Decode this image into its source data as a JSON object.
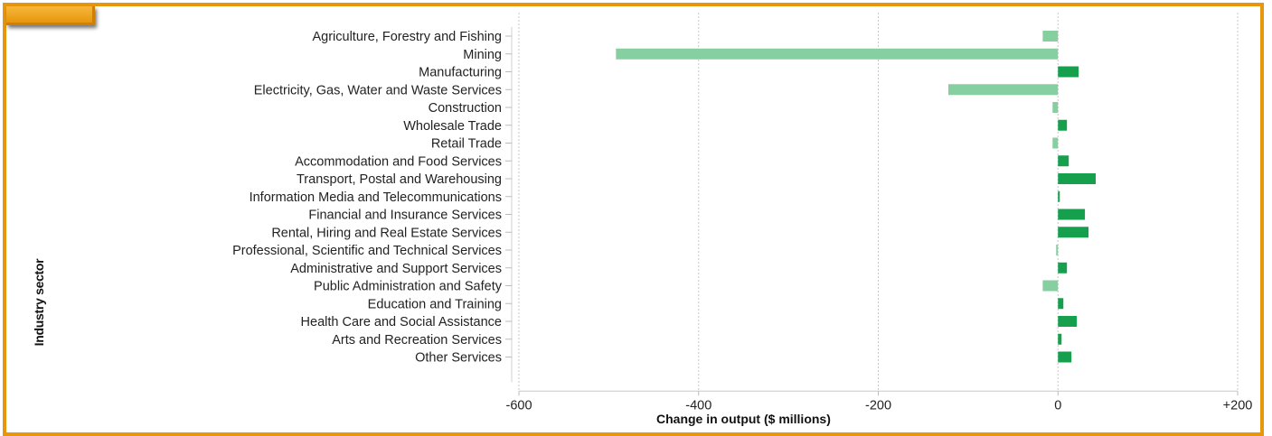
{
  "chart_data": {
    "type": "bar",
    "orientation": "horizontal",
    "xlabel": "Change in output ($ millions)",
    "ylabel": "Industry sector",
    "xlim": [
      -600,
      200
    ],
    "x_ticks": [
      -600,
      -400,
      -200,
      0,
      200
    ],
    "x_tick_labels": [
      "-600",
      "-400",
      "-200",
      "0",
      "+200"
    ],
    "grid": "vertical dashed",
    "colors": {
      "positive": "#16a04e",
      "negative": "#86cfa0",
      "frame": "#e8960c"
    },
    "categories": [
      "Agriculture, Forestry and Fishing",
      "Mining",
      "Manufacturing",
      "Electricity, Gas, Water and Waste Services",
      "Construction",
      "Wholesale Trade",
      "Retail Trade",
      "Accommodation and Food Services",
      "Transport, Postal and Warehousing",
      "Information Media and Telecommunications",
      "Financial and Insurance Services",
      "Rental, Hiring and Real Estate Services",
      "Professional, Scientific and Technical Services",
      "Administrative and Support Services",
      "Public Administration and Safety",
      "Education and Training",
      "Health Care and Social Assistance",
      "Arts and Recreation Services",
      "Other Services"
    ],
    "values": [
      -17,
      -492,
      23,
      -122,
      -6,
      10,
      -6,
      12,
      42,
      2,
      30,
      34,
      -2,
      10,
      -17,
      6,
      21,
      4,
      15
    ]
  }
}
